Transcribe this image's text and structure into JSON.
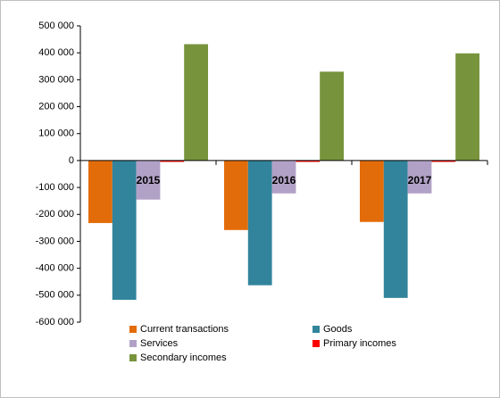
{
  "chart_data": {
    "type": "bar",
    "categories": [
      "2015",
      "2016",
      "2017"
    ],
    "series": [
      {
        "name": "Current transactions",
        "color": "#e36c0a",
        "values": [
          -232000,
          -258000,
          -228000
        ]
      },
      {
        "name": "Goods",
        "color": "#31849b",
        "values": [
          -517000,
          -463000,
          -510000
        ]
      },
      {
        "name": "Services",
        "color": "#b2a1c7",
        "values": [
          -145000,
          -122000,
          -122000
        ]
      },
      {
        "name": "Primary incomes",
        "color": "#ff0000",
        "values": [
          -5000,
          -5000,
          -5000
        ]
      },
      {
        "name": "Secondary incomes",
        "color": "#77933c",
        "values": [
          432000,
          330000,
          398000
        ]
      }
    ],
    "ylim": [
      -600000,
      500000
    ],
    "yticks": [
      {
        "value": -600000,
        "label": "-600 000"
      },
      {
        "value": -500000,
        "label": "-500 000"
      },
      {
        "value": -400000,
        "label": "-400 000"
      },
      {
        "value": -300000,
        "label": "-300 000"
      },
      {
        "value": -200000,
        "label": "-200 000"
      },
      {
        "value": -100000,
        "label": "-100 000"
      },
      0,
      {
        "value": 100000,
        "label": "100 000"
      },
      {
        "value": 200000,
        "label": "200 000"
      },
      {
        "value": 300000,
        "label": "300 000"
      },
      {
        "value": 400000,
        "label": "400 000"
      },
      {
        "value": 500000,
        "label": "500 000"
      }
    ],
    "legend": "bottom"
  }
}
